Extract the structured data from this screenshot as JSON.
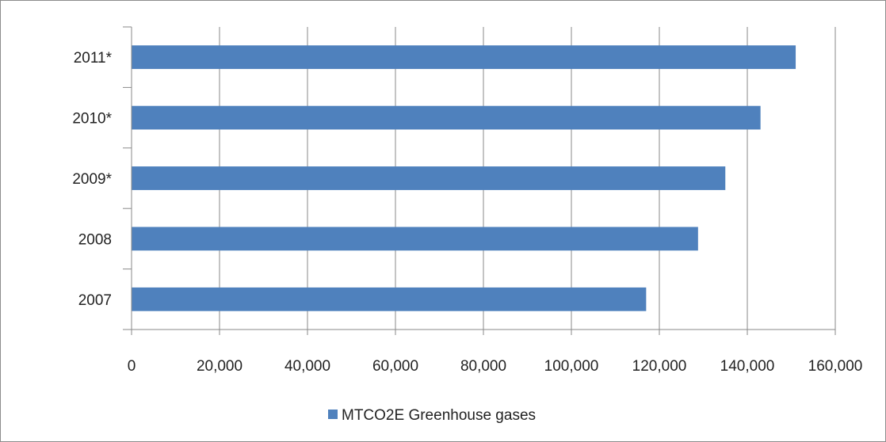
{
  "chart_data": {
    "type": "bar",
    "orientation": "horizontal",
    "categories": [
      "2007",
      "2008",
      "2009*",
      "2010*",
      "2011*"
    ],
    "series": [
      {
        "name": "MTCO2E Greenhouse gases",
        "values": [
          117000,
          128800,
          135000,
          143000,
          151000
        ]
      }
    ],
    "x_ticks": [
      "0",
      "20,000",
      "40,000",
      "60,000",
      "80,000",
      "100,000",
      "120,000",
      "140,000",
      "160,000"
    ],
    "xlim": [
      0,
      160000
    ],
    "grid": "vertical",
    "legend_position": "bottom",
    "colors": {
      "bar": "#4f81bd",
      "grid": "#8a8a8a",
      "axis": "#8a8a8a"
    }
  }
}
